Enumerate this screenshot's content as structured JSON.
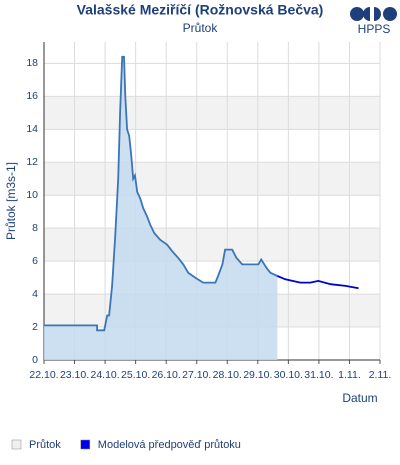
{
  "chart_data": {
    "type": "line",
    "title": "Valašské Meziříčí (Rožnovská Bečva)",
    "subtitle": "Průtok",
    "logo": "HPPS",
    "y_label": "Průtok [m3s-1]",
    "x_label": "Datum",
    "xlim": [
      0,
      11
    ],
    "xticks": [
      {
        "value": 0,
        "label": "22.10."
      },
      {
        "value": 1,
        "label": "23.10."
      },
      {
        "value": 2,
        "label": "24.10."
      },
      {
        "value": 3,
        "label": "25.10."
      },
      {
        "value": 4,
        "label": "26.10."
      },
      {
        "value": 5,
        "label": "27.10."
      },
      {
        "value": 6,
        "label": "28.10."
      },
      {
        "value": 7,
        "label": "29.10."
      },
      {
        "value": 8,
        "label": "30.10."
      },
      {
        "value": 9,
        "label": "31.10."
      },
      {
        "value": 10,
        "label": "1.11."
      },
      {
        "value": 11,
        "label": "2.11."
      }
    ],
    "ylim": [
      0,
      19.3
    ],
    "yticks": [
      0,
      2,
      4,
      6,
      8,
      10,
      12,
      14,
      16,
      18
    ],
    "grid": true,
    "series": [
      {
        "name": "Průtok",
        "color": "#3a75b5",
        "fill": "#c3daf0",
        "legend_color": "#f0f0f0",
        "x": [
          0,
          1.74,
          1.74,
          1.97,
          2.07,
          2.13,
          2.23,
          2.33,
          2.43,
          2.49,
          2.56,
          2.62,
          2.66,
          2.72,
          2.79,
          2.85,
          2.92,
          2.98,
          3.05,
          3.15,
          3.25,
          3.38,
          3.48,
          3.61,
          3.8,
          4.03,
          4.2,
          4.39,
          4.56,
          4.72,
          4.95,
          5.21,
          5.61,
          5.7,
          5.84,
          5.93,
          6.16,
          6.3,
          6.49,
          7.02,
          7.11,
          7.28,
          7.41,
          7.64
        ],
        "values": [
          2.1,
          2.1,
          1.8,
          1.8,
          2.7,
          2.7,
          4.5,
          7.5,
          11,
          15,
          18.4,
          18.4,
          16,
          14,
          13.6,
          12.5,
          11,
          11.2,
          10.2,
          9.8,
          9.2,
          8.7,
          8.2,
          7.7,
          7.3,
          7,
          6.6,
          6.2,
          5.8,
          5.3,
          5,
          4.7,
          4.7,
          5.1,
          5.8,
          6.7,
          6.7,
          6.2,
          5.8,
          5.8,
          6.1,
          5.6,
          5.3,
          5.1
        ]
      },
      {
        "name": "Modelová předpověď průtoku",
        "color": "#0000cc",
        "legend_color": "#0000ee",
        "x": [
          7.64,
          7.9,
          8.39,
          8.72,
          8.98,
          9.38,
          9.87,
          10.3
        ],
        "values": [
          5.1,
          4.9,
          4.7,
          4.7,
          4.8,
          4.6,
          4.5,
          4.35
        ]
      }
    ]
  }
}
